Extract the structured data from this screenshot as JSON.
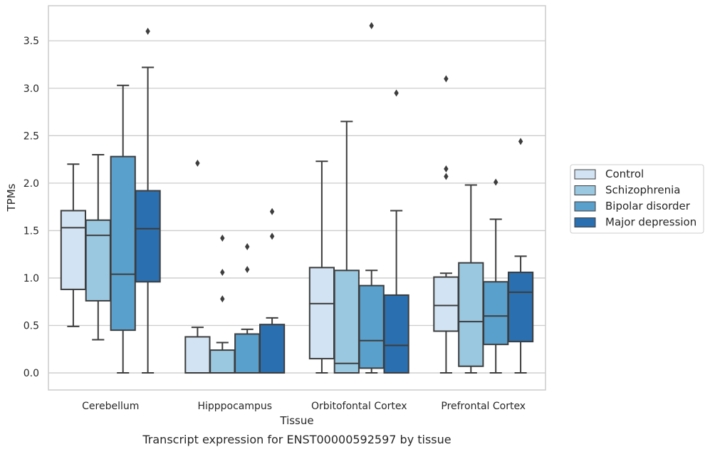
{
  "chart_data": {
    "type": "box",
    "title": "",
    "caption": "Transcript expression for ENST00000592597 by tissue",
    "xlabel": "Tissue",
    "ylabel": "TPMs",
    "ylim": [
      -0.18,
      3.87
    ],
    "yticks": [
      0.0,
      0.5,
      1.0,
      1.5,
      2.0,
      2.5,
      3.0,
      3.5
    ],
    "ytick_labels": [
      "0.0",
      "0.5",
      "1.0",
      "1.5",
      "2.0",
      "2.5",
      "3.0",
      "3.5"
    ],
    "grid": "horizontal",
    "legend_position": "right",
    "categories": [
      "Cerebellum",
      "Hipppocampus",
      "Orbitofontal Cortex",
      "Prefrontal Cortex"
    ],
    "series": [
      {
        "name": "Control",
        "color": "#d2e3f3",
        "boxes": [
          {
            "whislo": 0.49,
            "q1": 0.88,
            "med": 1.53,
            "q3": 1.71,
            "whishi": 2.2,
            "fliers": []
          },
          {
            "whislo": 0.0,
            "q1": 0.0,
            "med": 0.0,
            "q3": 0.38,
            "whishi": 0.48,
            "fliers": [
              2.21
            ]
          },
          {
            "whislo": 0.0,
            "q1": 0.15,
            "med": 0.73,
            "q3": 1.11,
            "whishi": 2.23,
            "fliers": []
          },
          {
            "whislo": 0.0,
            "q1": 0.44,
            "med": 0.71,
            "q3": 1.01,
            "whishi": 1.05,
            "fliers": [
              2.07,
              2.15,
              3.1
            ]
          }
        ]
      },
      {
        "name": "Schizophrenia",
        "color": "#9ac8e0",
        "boxes": [
          {
            "whislo": 0.35,
            "q1": 0.76,
            "med": 1.45,
            "q3": 1.61,
            "whishi": 2.3,
            "fliers": []
          },
          {
            "whislo": 0.0,
            "q1": 0.0,
            "med": 0.0,
            "q3": 0.24,
            "whishi": 0.32,
            "fliers": [
              0.78,
              1.06,
              1.42
            ]
          },
          {
            "whislo": 0.0,
            "q1": 0.0,
            "med": 0.1,
            "q3": 1.08,
            "whishi": 2.65,
            "fliers": []
          },
          {
            "whislo": 0.0,
            "q1": 0.07,
            "med": 0.54,
            "q3": 1.16,
            "whishi": 1.98,
            "fliers": []
          }
        ]
      },
      {
        "name": "Bipolar disorder",
        "color": "#5aa0cd",
        "boxes": [
          {
            "whislo": 0.0,
            "q1": 0.45,
            "med": 1.04,
            "q3": 2.28,
            "whishi": 3.03,
            "fliers": []
          },
          {
            "whislo": 0.0,
            "q1": 0.0,
            "med": 0.0,
            "q3": 0.41,
            "whishi": 0.46,
            "fliers": [
              1.09,
              1.33
            ]
          },
          {
            "whislo": 0.0,
            "q1": 0.05,
            "med": 0.34,
            "q3": 0.92,
            "whishi": 1.08,
            "fliers": [
              3.66
            ]
          },
          {
            "whislo": 0.0,
            "q1": 0.3,
            "med": 0.6,
            "q3": 0.96,
            "whishi": 1.62,
            "fliers": [
              2.01
            ]
          }
        ]
      },
      {
        "name": "Major depression",
        "color": "#2a6fb0",
        "boxes": [
          {
            "whislo": 0.0,
            "q1": 0.96,
            "med": 1.52,
            "q3": 1.92,
            "whishi": 3.22,
            "fliers": [
              3.6
            ]
          },
          {
            "whislo": 0.0,
            "q1": 0.0,
            "med": 0.0,
            "q3": 0.51,
            "whishi": 0.58,
            "fliers": [
              1.44,
              1.7
            ]
          },
          {
            "whislo": 0.0,
            "q1": 0.0,
            "med": 0.29,
            "q3": 0.82,
            "whishi": 1.71,
            "fliers": [
              2.95
            ]
          },
          {
            "whislo": 0.0,
            "q1": 0.33,
            "med": 0.85,
            "q3": 1.06,
            "whishi": 1.23,
            "fliers": [
              2.44
            ]
          }
        ]
      }
    ]
  }
}
